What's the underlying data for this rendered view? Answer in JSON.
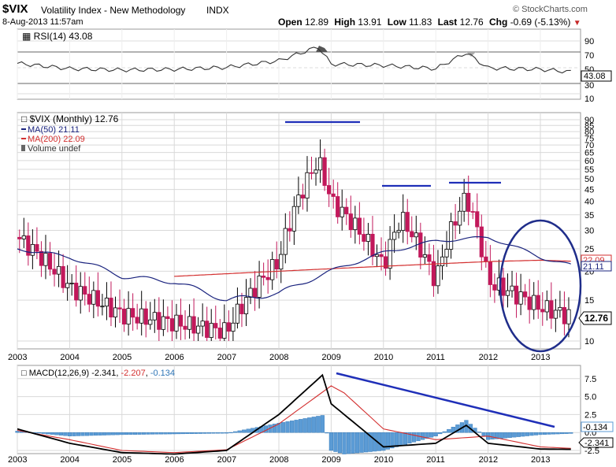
{
  "header": {
    "symbol": "$VIX",
    "name": "Volatility Index - New Methodology",
    "exchange": "INDX",
    "date": "8-Aug-2013 11:57am",
    "logo": "© StockCharts.com",
    "open_label": "Open",
    "open": "12.89",
    "high_label": "High",
    "high": "13.91",
    "low_label": "Low",
    "low": "11.83",
    "last_label": "Last",
    "last": "12.76",
    "chg_label": "Chg",
    "chg": "-0.69 (-5.13%)",
    "chg_arrow": "▼"
  },
  "rsi": {
    "label": "RSI(14) 43.08",
    "value_tag": "43.08",
    "ticks": [
      "90",
      "70",
      "50",
      "30",
      "10"
    ]
  },
  "price": {
    "legend_main": "$VIX (Monthly) 12.76",
    "legend_ma50": "MA(50) 21.11",
    "legend_ma200": "MA(200) 22.09",
    "legend_vol": "Volume undef",
    "tag_ma200": "22.09",
    "tag_ma50": "21.11",
    "tag_last": "12.76",
    "ticks": [
      "90",
      "85",
      "80",
      "75",
      "70",
      "65",
      "60",
      "55",
      "50",
      "45",
      "40",
      "35",
      "30",
      "25",
      "20",
      "15",
      "10"
    ]
  },
  "macd": {
    "label_main": "MACD(12,26,9)",
    "v1": "-2.341",
    "v2": "-2.207",
    "v3": "-0.134",
    "tag1": "-0.134",
    "tag2": "-2.341",
    "ticks": [
      "7.5",
      "5.0",
      "2.5",
      "0.0",
      "-2.5"
    ]
  },
  "xaxis": [
    "2003",
    "2004",
    "2005",
    "2006",
    "2007",
    "2008",
    "2009",
    "2010",
    "2011",
    "2012",
    "2013"
  ],
  "colors": {
    "ma50": "#1a237e",
    "ma200": "#d32f2f",
    "up_bar": "#ffffff",
    "down_bar": "#c2185b",
    "macd_line": "#000000",
    "signal_line": "#d32f2f",
    "histogram": "#5b9bd5",
    "annotation": "#1f2fb8",
    "grid": "#d9d9d9"
  },
  "chart_data": [
    {
      "type": "line",
      "panel": "RSI(14)",
      "ylim": [
        10,
        90
      ],
      "last": 43.08,
      "x": [
        "2003",
        "2004",
        "2005",
        "2006",
        "2007",
        "2008",
        "2008-10",
        "2009",
        "2010",
        "2011",
        "2011-08",
        "2012",
        "2013",
        "2013-08"
      ],
      "values": [
        56,
        48,
        46,
        47,
        50,
        60,
        81,
        55,
        53,
        48,
        72,
        49,
        47,
        43.08
      ]
    },
    {
      "type": "candlestick",
      "title": "$VIX (Monthly)",
      "scale": "log",
      "ylim": [
        10,
        90
      ],
      "last": 12.76,
      "open": 12.89,
      "high": 13.91,
      "low": 11.83,
      "approx_closes": {
        "x": [
          "2003",
          "2004",
          "2005",
          "2006",
          "2007",
          "2008",
          "2008-10",
          "2009",
          "2010",
          "2010-05",
          "2011",
          "2011-08",
          "2012",
          "2013",
          "2013-08"
        ],
        "values": [
          28,
          17,
          13,
          12,
          11,
          22,
          60,
          40,
          21,
          34,
          18,
          42,
          18,
          14,
          12.76
        ]
      },
      "series": [
        {
          "name": "MA(50)",
          "last": 21.11,
          "x": [
            "2003",
            "2004",
            "2005",
            "2006",
            "2007",
            "2008",
            "2009",
            "2010",
            "2011",
            "2012",
            "2013",
            "2013-08"
          ],
          "values": [
            25,
            23,
            19,
            18,
            15,
            16,
            20,
            24,
            27,
            28,
            23,
            21.11
          ]
        },
        {
          "name": "MA(200)",
          "last": 22.09,
          "x": [
            "2006",
            "2007",
            "2008",
            "2009",
            "2010",
            "2011",
            "2012",
            "2013",
            "2013-08"
          ],
          "values": [
            19,
            19.5,
            20,
            20.5,
            21,
            21.5,
            22,
            22.3,
            22.09
          ]
        }
      ]
    },
    {
      "type": "line",
      "panel": "MACD(12,26,9)",
      "ylim": [
        -3.5,
        9
      ],
      "macd": -2.341,
      "signal": -2.207,
      "histogram": -0.134,
      "series": [
        {
          "name": "MACD",
          "x": [
            "2003",
            "2004",
            "2005",
            "2006",
            "2007",
            "2008",
            "2008-11",
            "2009",
            "2010",
            "2011",
            "2011-08",
            "2012",
            "2013",
            "2013-08"
          ],
          "values": [
            0.5,
            -1.5,
            -2.8,
            -3.0,
            -2.5,
            2.5,
            8.0,
            4.0,
            -2.0,
            -1.5,
            1.0,
            -1.5,
            -2.3,
            -2.341
          ]
        },
        {
          "name": "Signal",
          "x": [
            "2003",
            "2004",
            "2005",
            "2006",
            "2007",
            "2008",
            "2009",
            "2009-04",
            "2010",
            "2011",
            "2012",
            "2013",
            "2013-08"
          ],
          "values": [
            0.3,
            -1.0,
            -2.5,
            -2.8,
            -2.4,
            1.2,
            6.5,
            5.5,
            0.5,
            -1.0,
            -0.5,
            -2.0,
            -2.207
          ]
        }
      ]
    }
  ]
}
